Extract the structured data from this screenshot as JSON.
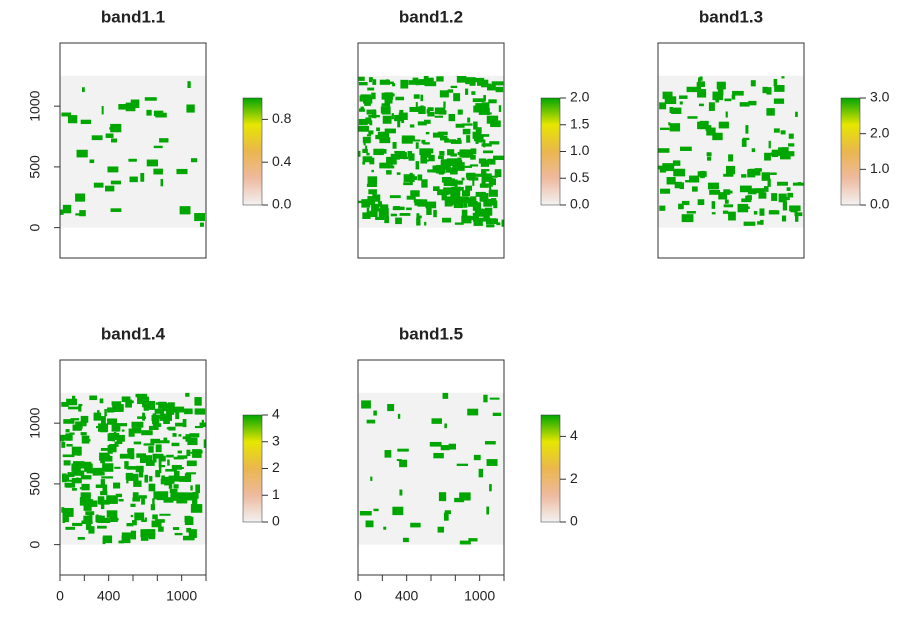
{
  "chart_data": [
    {
      "type": "raster",
      "title": "band1.1",
      "xlim": [
        0,
        1200
      ],
      "ylim": [
        -250,
        1520
      ],
      "yticks": [
        0,
        500,
        1000
      ],
      "zlim": [
        0,
        1
      ],
      "legend_ticks": [
        {
          "value": 0,
          "label": "0.0"
        },
        {
          "value": 0.4,
          "label": "0.4"
        },
        {
          "value": 0.8,
          "label": "0.8"
        }
      ]
    },
    {
      "type": "raster",
      "title": "band1.2",
      "xlim": [
        0,
        1200
      ],
      "ylim": [
        -250,
        1520
      ],
      "zlim": [
        0,
        2
      ],
      "legend_ticks": [
        {
          "value": 0,
          "label": "0.0"
        },
        {
          "value": 0.5,
          "label": "0.5"
        },
        {
          "value": 1,
          "label": "1.0"
        },
        {
          "value": 1.5,
          "label": "1.5"
        },
        {
          "value": 2,
          "label": "2.0"
        }
      ]
    },
    {
      "type": "raster",
      "title": "band1.3",
      "xlim": [
        0,
        1200
      ],
      "ylim": [
        -250,
        1520
      ],
      "zlim": [
        0,
        3
      ],
      "legend_ticks": [
        {
          "value": 0,
          "label": "0.0"
        },
        {
          "value": 1,
          "label": "1.0"
        },
        {
          "value": 2,
          "label": "2.0"
        },
        {
          "value": 3,
          "label": "3.0"
        }
      ]
    },
    {
      "type": "raster",
      "title": "band1.4",
      "xlim": [
        0,
        1200
      ],
      "ylim": [
        -250,
        1520
      ],
      "yticks": [
        0,
        500,
        1000
      ],
      "xticks": [
        0,
        400,
        1000
      ],
      "xminor_ticks": [
        200,
        600,
        800,
        1200
      ],
      "zlim": [
        0,
        4
      ],
      "legend_ticks": [
        0,
        1,
        2,
        3,
        4
      ]
    },
    {
      "type": "raster",
      "title": "band1.5",
      "xlim": [
        0,
        1200
      ],
      "ylim": [
        -250,
        1520
      ],
      "xticks": [
        0,
        400,
        1000
      ],
      "xminor_ticks": [
        200,
        600,
        800,
        1200
      ],
      "zlim": [
        0,
        5
      ],
      "legend_ticks": [
        0,
        2,
        4
      ]
    }
  ]
}
